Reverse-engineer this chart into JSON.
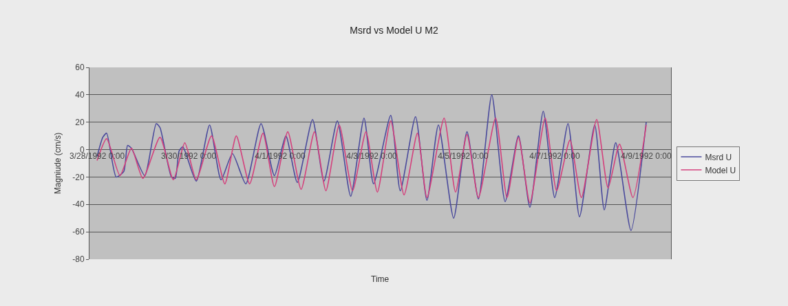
{
  "chart_data": {
    "type": "line",
    "title": "Msrd vs Model U M2",
    "xlabel": "Time",
    "ylabel": "Magniude (cm/s)",
    "xlim": [
      "1992-03-27T20:00",
      "1992-04-09T13:00"
    ],
    "xticks": [
      {
        "value": "1992-03-28",
        "label": "3/28/1992 0:00"
      },
      {
        "value": "1992-03-30",
        "label": "3/30/1992 0:00"
      },
      {
        "value": "1992-04-01",
        "label": "4/1/1992 0:00"
      },
      {
        "value": "1992-04-03",
        "label": "4/3/1992 0:00"
      },
      {
        "value": "1992-04-05",
        "label": "4/5/1992 0:00"
      },
      {
        "value": "1992-04-07",
        "label": "4/7/1992 0:00"
      },
      {
        "value": "1992-04-09",
        "label": "4/9/1992 0:00"
      }
    ],
    "ylim": [
      -80,
      60
    ],
    "yticks": [
      -80,
      -60,
      -40,
      -20,
      0,
      20,
      40,
      60
    ],
    "grid": "y",
    "legend": "right",
    "marker": "none",
    "line_style": "solid",
    "series": [
      {
        "name": "Msrd U",
        "color": "#4a4a9c",
        "x": [
          "1992-03-28T00:00",
          "1992-03-28T03:00",
          "1992-03-28T05:00",
          "1992-03-28T10:00",
          "1992-03-28T14:00",
          "1992-03-28T16:00",
          "1992-03-28T18:00",
          "1992-03-29T01:00",
          "1992-03-29T07:00",
          "1992-03-29T09:00",
          "1992-03-29T15:00",
          "1992-03-29T17:00",
          "1992-03-29T19:00",
          "1992-03-29T21:00",
          "1992-03-30T04:00",
          "1992-03-30T11:00",
          "1992-03-30T17:00",
          "1992-03-30T23:00",
          "1992-03-31T06:00",
          "1992-03-31T14:00",
          "1992-03-31T21:00",
          "1992-04-01T03:00",
          "1992-04-01T09:00",
          "1992-04-01T17:00",
          "1992-04-01T23:00",
          "1992-04-02T06:00",
          "1992-04-02T13:00",
          "1992-04-02T20:00",
          "1992-04-03T01:00",
          "1992-04-03T10:00",
          "1992-04-03T15:00",
          "1992-04-03T23:00",
          "1992-04-04T05:00",
          "1992-04-04T11:00",
          "1992-04-04T19:00",
          "1992-04-05T02:00",
          "1992-04-05T08:00",
          "1992-04-05T15:00",
          "1992-04-05T22:00",
          "1992-04-06T05:00",
          "1992-04-06T11:00",
          "1992-04-06T18:00",
          "1992-04-07T00:00",
          "1992-04-07T07:00",
          "1992-04-07T13:00",
          "1992-04-07T21:00",
          "1992-04-08T02:00",
          "1992-04-08T08:00",
          "1992-04-08T16:00",
          "1992-04-09T00:00"
        ],
        "values": [
          -5,
          9,
          12,
          -20,
          -16,
          3,
          1,
          -19,
          19,
          16,
          -20,
          -21,
          -1,
          2,
          -23,
          18,
          -22,
          -3,
          -25,
          19,
          -19,
          10,
          -24,
          22,
          -23,
          21,
          -34,
          23,
          -25,
          25,
          -30,
          24,
          -37,
          18,
          -50,
          13,
          -36,
          40,
          -38,
          10,
          -42,
          28,
          -35,
          19,
          -49,
          18,
          -44,
          5,
          -59,
          20
        ]
      },
      {
        "name": "Model U",
        "color": "#d4407c",
        "x": [
          "1992-03-28T00:00",
          "1992-03-28T05:00",
          "1992-03-28T12:00",
          "1992-03-28T18:00",
          "1992-03-29T00:00",
          "1992-03-29T09:00",
          "1992-03-29T16:00",
          "1992-03-29T22:00",
          "1992-03-30T04:00",
          "1992-03-30T12:00",
          "1992-03-30T19:00",
          "1992-03-31T01:00",
          "1992-03-31T08:00",
          "1992-03-31T15:00",
          "1992-03-31T21:00",
          "1992-04-01T04:00",
          "1992-04-01T11:00",
          "1992-04-01T18:00",
          "1992-04-02T00:00",
          "1992-04-02T07:00",
          "1992-04-02T14:00",
          "1992-04-02T21:00",
          "1992-04-03T03:00",
          "1992-04-03T10:00",
          "1992-04-03T17:00",
          "1992-04-04T00:00",
          "1992-04-04T05:00",
          "1992-04-04T14:00",
          "1992-04-04T20:00",
          "1992-04-05T02:00",
          "1992-04-05T08:00",
          "1992-04-05T17:00",
          "1992-04-05T23:00",
          "1992-04-06T05:00",
          "1992-04-06T11:00",
          "1992-04-06T19:00",
          "1992-04-07T01:00",
          "1992-04-07T08:00",
          "1992-04-07T14:00",
          "1992-04-07T22:00",
          "1992-04-08T04:00",
          "1992-04-08T10:00",
          "1992-04-08T17:00",
          "1992-04-09T00:00"
        ],
        "values": [
          -8,
          8,
          -19,
          1,
          -21,
          9,
          -22,
          5,
          -22,
          10,
          -25,
          10,
          -25,
          12,
          -27,
          13,
          -29,
          13,
          -30,
          18,
          -30,
          13,
          -31,
          21,
          -33,
          12,
          -35,
          23,
          -31,
          11,
          -35,
          23,
          -35,
          9,
          -39,
          23,
          -30,
          7,
          -35,
          22,
          -28,
          4,
          -35,
          18
        ]
      }
    ]
  }
}
